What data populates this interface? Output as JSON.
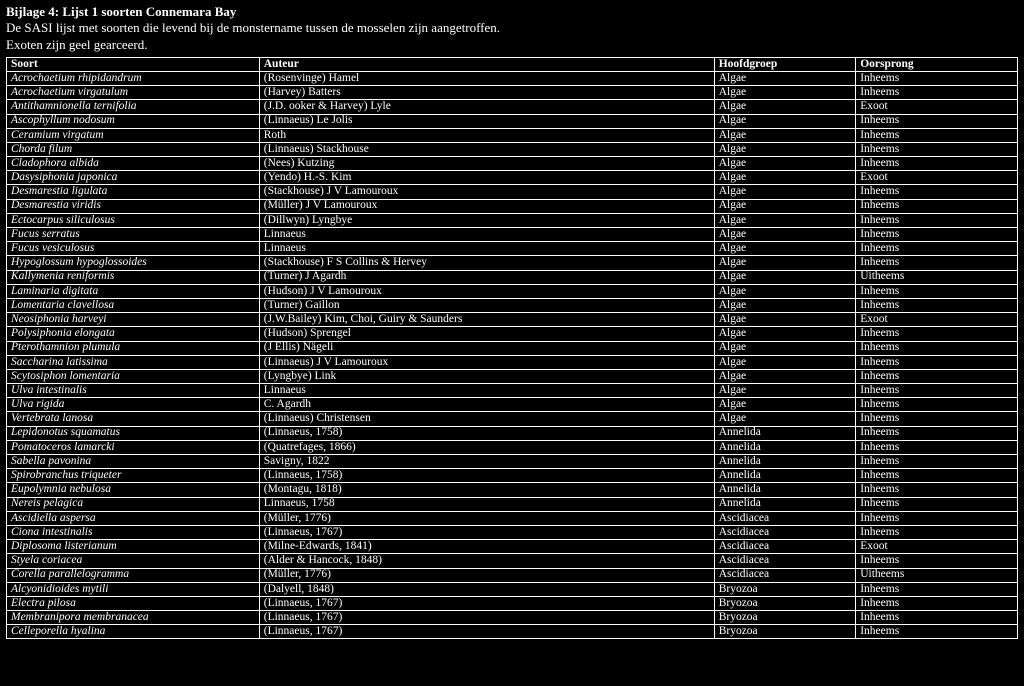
{
  "header": {
    "title": "Bijlage 4: Lijst 1 soorten Connemara Bay",
    "line2": "De SASI lijst met soorten die levend bij de monstername tussen de mosselen zijn aangetroffen.",
    "line3": "Exoten zijn geel gearceerd."
  },
  "columns": [
    "Soort",
    "Auteur",
    "Hoofdgroep",
    "Oorsprong"
  ],
  "rows": [
    [
      "Acrochaetium rhipidandrum",
      "(Rosenvinge) Hamel",
      "Algae",
      "Inheems"
    ],
    [
      "Acrochaetium virgatulum",
      "(Harvey) Batters",
      "Algae",
      "Inheems"
    ],
    [
      "Antithamnionella ternifolia",
      "(J.D. ooker & Harvey) Lyle",
      "Algae",
      "Exoot"
    ],
    [
      "Ascophyllum nodosum",
      "(Linnaeus) Le Jolis",
      "Algae",
      "Inheems"
    ],
    [
      "Ceramium virgatum",
      "Roth",
      "Algae",
      "Inheems"
    ],
    [
      "Chorda filum",
      "(Linnaeus) Stackhouse",
      "Algae",
      "Inheems"
    ],
    [
      "Cladophora albida",
      "(Nees) Kutzing",
      "Algae",
      "Inheems"
    ],
    [
      "Dasysiphonia japonica",
      "(Yendo) H.-S. Kim",
      "Algae",
      "Exoot"
    ],
    [
      "Desmarestia ligulata",
      "(Stackhouse) J V Lamouroux",
      "Algae",
      "Inheems"
    ],
    [
      "Desmarestia viridis",
      "(Müller) J V Lamouroux",
      "Algae",
      "Inheems"
    ],
    [
      "Ectocarpus siliculosus",
      "(Dillwyn) Lyngbye",
      "Algae",
      "Inheems"
    ],
    [
      "Fucus serratus",
      "Linnaeus",
      "Algae",
      "Inheems"
    ],
    [
      "Fucus vesiculosus",
      "Linnaeus",
      "Algae",
      "Inheems"
    ],
    [
      "Hypoglossum hypoglossoides",
      "(Stackhouse) F S Collins & Hervey",
      "Algae",
      "Inheems"
    ],
    [
      "Kallymenia reniformis",
      "(Turner) J Agardh",
      "Algae",
      "Uitheems"
    ],
    [
      "Laminaria digitata",
      "(Hudson) J V Lamouroux",
      "Algae",
      "Inheems"
    ],
    [
      "Lomentaria clavellosa",
      "(Turner) Gaillon",
      "Algae",
      "Inheems"
    ],
    [
      "Neosiphonia harveyi",
      "(J.W.Bailey) Kim, Choi, Guiry & Saunders",
      "Algae",
      "Exoot"
    ],
    [
      "Polysiphonia elongata",
      "(Hudson) Sprengel",
      "Algae",
      "Inheems"
    ],
    [
      "Pterothamnion plumula",
      "(J Ellis) Nägeli",
      "Algae",
      "Inheems"
    ],
    [
      "Saccharina latissima",
      "(Linnaeus) J V Lamouroux",
      "Algae",
      "Inheems"
    ],
    [
      "Scytosiphon lomentaria",
      "(Lyngbye) Link",
      "Algae",
      "Inheems"
    ],
    [
      "Ulva intestinalis",
      "Linnaeus",
      "Algae",
      "Inheems"
    ],
    [
      "Ulva rigida",
      "C. Agardh",
      "Algae",
      "Inheems"
    ],
    [
      "Vertebrata lanosa",
      "(Linnaeus) Christensen",
      "Algae",
      "Inheems"
    ],
    [
      "Lepidonotus squamatus",
      "(Linnaeus, 1758)",
      "Annelida",
      "Inheems"
    ],
    [
      "Pomatoceros lamarcki",
      "(Quatrefages, 1866)",
      "Annelida",
      "Inheems"
    ],
    [
      "Sabella pavonina",
      "Savigny, 1822",
      "Annelida",
      "Inheems"
    ],
    [
      "Spirobranchus triqueter",
      "(Linnaeus, 1758)",
      "Annelida",
      "Inheems"
    ],
    [
      "Eupolymnia nebulosa",
      "(Montagu, 1818)",
      "Annelida",
      "Inheems"
    ],
    [
      "Nereis pelagica",
      "Linnaeus, 1758",
      "Annelida",
      "Inheems"
    ],
    [
      "Ascidiella aspersa",
      "(Müller, 1776)",
      "Ascidiacea",
      "Inheems"
    ],
    [
      "Ciona intestinalis",
      "(Linnaeus, 1767)",
      "Ascidiacea",
      "Inheems"
    ],
    [
      "Diplosoma listerianum",
      "(Milne-Edwards, 1841)",
      "Ascidiacea",
      "Exoot"
    ],
    [
      "Styela coriacea",
      "(Alder & Hancock, 1848)",
      "Ascidiacea",
      "Inheems"
    ],
    [
      "Corella parallelogramma",
      "(Müller, 1776)",
      "Ascidiacea",
      "Uitheems"
    ],
    [
      "Alcyonidioides mytili",
      "(Dalyell, 1848)",
      "Bryozoa",
      "Inheems"
    ],
    [
      "Electra pilosa",
      "(Linnaeus, 1767)",
      "Bryozoa",
      "Inheems"
    ],
    [
      "Membranipora membranacea",
      "(Linnaeus, 1767)",
      "Bryozoa",
      "Inheems"
    ],
    [
      "Celleporella hyalina",
      "(Linnaeus, 1767)",
      "Bryozoa",
      "Inheems"
    ]
  ]
}
